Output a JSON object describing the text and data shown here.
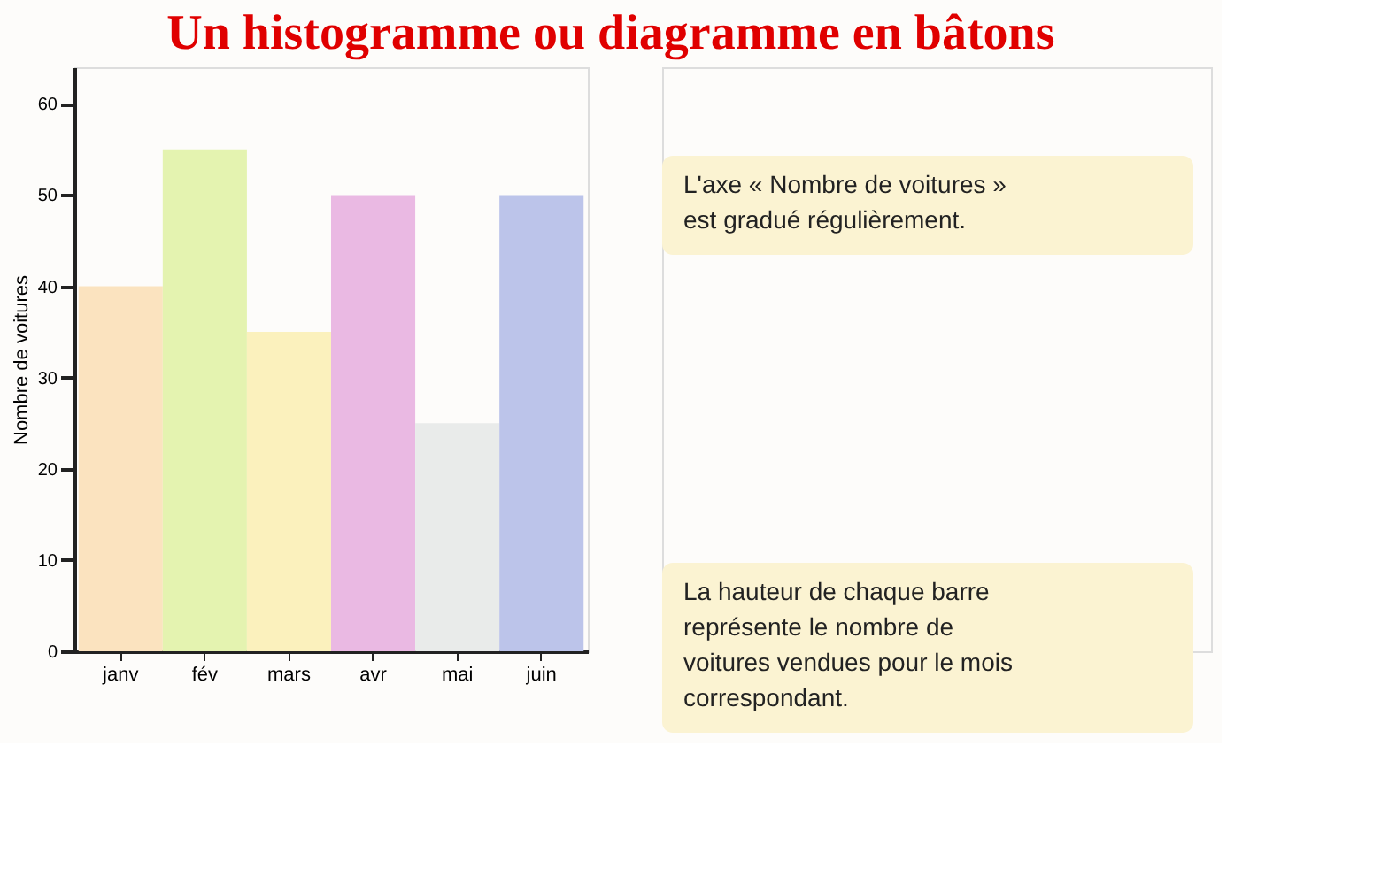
{
  "chart_data": {
    "type": "bar",
    "title": "Un histogramme ou diagramme en bâtons",
    "categories": [
      "janv",
      "fév",
      "mars",
      "avr",
      "mai",
      "juin"
    ],
    "values": [
      40,
      55,
      35,
      50,
      25,
      50
    ],
    "colors": [
      "#fbe3bf",
      "#e4f3b0",
      "#fbf1bd",
      "#eab9e3",
      "#e9ebea",
      "#bcc4ea"
    ],
    "ylabel": "Nombre de voitures",
    "ylim": [
      0,
      64
    ],
    "yticks": [
      0,
      10,
      20,
      30,
      40,
      50,
      60
    ],
    "grid": false,
    "annotations": [
      "L'axe « Nombre de voitures » est gradué régulièrement.",
      "La hauteur de chaque barre représente le nombre de voitures vendues pour le mois correspondant."
    ]
  }
}
